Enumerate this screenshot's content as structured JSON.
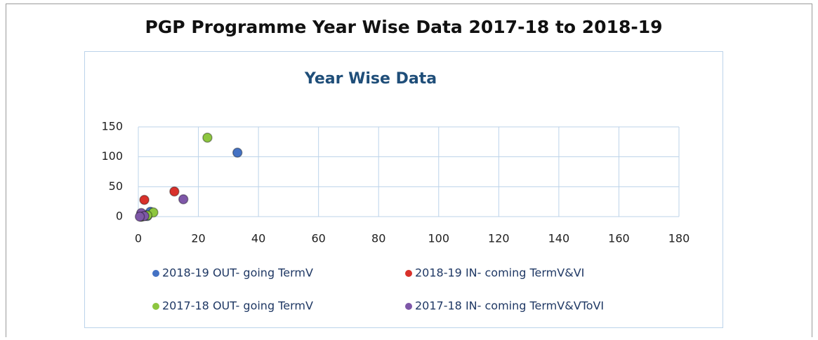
{
  "chart_data": {
    "type": "scatter",
    "title": "PGP Programme Year Wise Data 2017-18 to 2018-19",
    "subtitle": "Year Wise Data",
    "xlim": [
      0,
      180
    ],
    "xticks": [
      0,
      20,
      40,
      60,
      80,
      100,
      120,
      140,
      160,
      180
    ],
    "ylim": [
      0,
      150
    ],
    "yticks": [
      0,
      50,
      100,
      150
    ],
    "grid": true,
    "series": [
      {
        "name": "2018-19 OUT- going TermV",
        "color": "#4472c4",
        "x": [
          33,
          4,
          2,
          1,
          3
        ],
        "values": [
          107,
          8,
          2,
          0,
          1
        ]
      },
      {
        "name": "2018-19 IN- coming TermV&VI",
        "color": "#d9312b",
        "x": [
          12,
          2,
          1,
          2
        ],
        "values": [
          42,
          28,
          5,
          1
        ]
      },
      {
        "name": "2017-18 OUT- going TermV",
        "color": "#8dc63f",
        "x": [
          23,
          5,
          3,
          1
        ],
        "values": [
          132,
          7,
          2,
          0
        ]
      },
      {
        "name": "2017-18 IN- coming TermV&VToVI",
        "color": "#7e57a8",
        "x": [
          15,
          1,
          2,
          0.5
        ],
        "values": [
          29,
          6,
          1,
          0
        ]
      }
    ]
  }
}
